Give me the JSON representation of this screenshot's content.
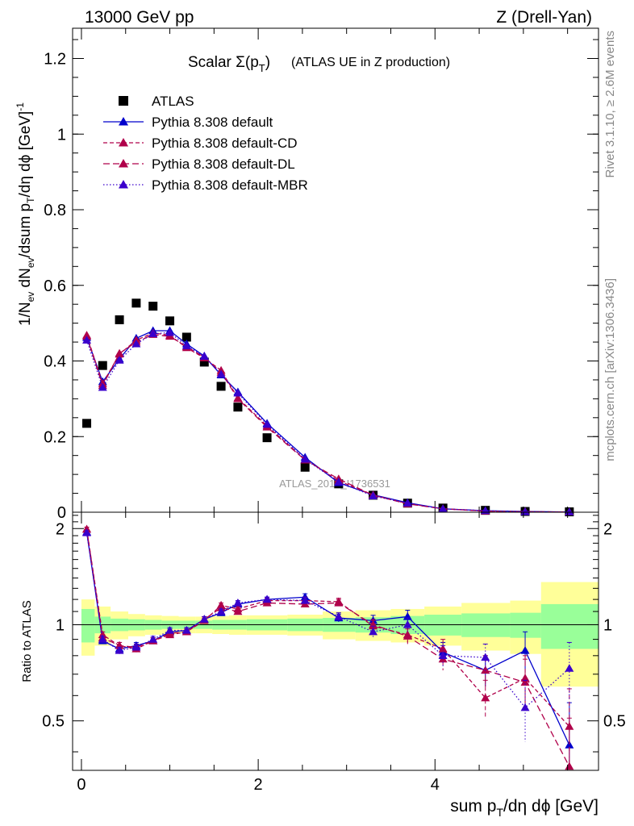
{
  "header": {
    "left": "13000 GeV pp",
    "right": "Z (Drell-Yan)"
  },
  "side_labels": {
    "rivet": "Rivet 3.1.10, ≥ 2.6M events",
    "mcplots": "mcplots.cern.ch [arXiv:1306.3436]"
  },
  "chart_data": [
    {
      "type": "scatter",
      "title_main": "Scalar Σ(p",
      "title_sub": "T",
      "title_close": ")",
      "title_extra": "(ATLAS UE in Z production)",
      "ylabel": "1/N_ev dN_ev/dsum p_T/dη dϕ [GeV]^-1",
      "watermark": "ATLAS_2019_I1736531",
      "xlim": [
        -0.1,
        5.85
      ],
      "ylim": [
        0,
        1.28
      ],
      "yticks": [
        0,
        0.2,
        0.4,
        0.6,
        0.8,
        1,
        1.2
      ],
      "ytick_labels": [
        "0",
        "0.2",
        "0.4",
        "0.6",
        "0.8",
        "1",
        "1.2"
      ],
      "x": [
        0.06,
        0.24,
        0.43,
        0.62,
        0.81,
        1.0,
        1.19,
        1.39,
        1.58,
        1.77,
        2.1,
        2.53,
        2.91,
        3.3,
        3.69,
        4.09,
        4.57,
        5.02,
        5.52
      ],
      "series": [
        {
          "name": "ATLAS",
          "color": "#000000",
          "marker": "square",
          "values": [
            0.235,
            0.388,
            0.509,
            0.553,
            0.545,
            0.506,
            0.463,
            0.397,
            0.333,
            0.278,
            0.197,
            0.119,
            0.075,
            0.045,
            0.024,
            0.011,
            0.005,
            0.002,
            0.001
          ]
        },
        {
          "name": "Pythia 8.308 default",
          "color": "#0000cc",
          "marker": "triangle",
          "dash": "none",
          "values": [
            0.462,
            0.345,
            0.405,
            0.46,
            0.48,
            0.48,
            0.445,
            0.413,
            0.363,
            0.318,
            0.235,
            0.145,
            0.078,
            0.046,
            0.025,
            0.009,
            0.004,
            0.002,
            0.0004
          ]
        },
        {
          "name": "Pythia 8.308 default-CD",
          "color": "#b0004a",
          "marker": "triangle",
          "dash": "5,3",
          "values": [
            0.468,
            0.34,
            0.418,
            0.455,
            0.474,
            0.468,
            0.435,
            0.408,
            0.375,
            0.302,
            0.228,
            0.14,
            0.083,
            0.045,
            0.023,
            0.009,
            0.003,
            0.0013,
            0.0005
          ]
        },
        {
          "name": "Pythia 8.308 default-DL",
          "color": "#b0004a",
          "marker": "triangle",
          "dash": "8,4",
          "values": [
            0.465,
            0.335,
            0.42,
            0.45,
            0.47,
            0.465,
            0.438,
            0.41,
            0.37,
            0.3,
            0.225,
            0.138,
            0.088,
            0.045,
            0.022,
            0.009,
            0.003,
            0.0014,
            0.0005
          ]
        },
        {
          "name": "Pythia 8.308 default-MBR",
          "color": "#3a00cc",
          "marker": "triangle",
          "dash": "1.5,2.5",
          "values": [
            0.455,
            0.33,
            0.402,
            0.445,
            0.472,
            0.475,
            0.44,
            0.412,
            0.365,
            0.315,
            0.232,
            0.14,
            0.08,
            0.043,
            0.024,
            0.009,
            0.004,
            0.001,
            0.0007
          ]
        }
      ]
    },
    {
      "type": "scatter",
      "ylabel": "Ratio to ATLAS",
      "xlabel_main": "sum p",
      "xlabel_sub": "T",
      "xlabel_rest": "/dη dϕ [GeV]",
      "xlim": [
        -0.1,
        5.85
      ],
      "ylim": [
        0.35,
        2.25
      ],
      "xticks": [
        0,
        2,
        4
      ],
      "xtick_labels": [
        "0",
        "2",
        "4"
      ],
      "yticks": [
        0.5,
        1,
        2
      ],
      "ytick_labels": [
        "0.5",
        "1",
        "2"
      ],
      "band_edges": [
        0.0,
        0.15,
        0.33,
        0.53,
        0.72,
        0.91,
        1.1,
        1.29,
        1.48,
        1.67,
        1.87,
        2.33,
        2.73,
        3.1,
        3.5,
        3.88,
        4.3,
        4.85,
        5.2,
        5.85
      ],
      "band_inner": [
        0.12,
        0.06,
        0.045,
        0.04,
        0.035,
        0.03,
        0.03,
        0.03,
        0.035,
        0.035,
        0.04,
        0.045,
        0.05,
        0.055,
        0.065,
        0.075,
        0.085,
        0.09,
        0.16
      ],
      "band_outer": [
        0.2,
        0.14,
        0.1,
        0.08,
        0.07,
        0.065,
        0.06,
        0.06,
        0.065,
        0.07,
        0.07,
        0.075,
        0.1,
        0.11,
        0.12,
        0.14,
        0.17,
        0.19,
        0.36
      ],
      "x": [
        0.06,
        0.24,
        0.43,
        0.62,
        0.81,
        1.0,
        1.19,
        1.39,
        1.58,
        1.77,
        2.1,
        2.53,
        2.91,
        3.3,
        3.69,
        4.09,
        4.57,
        5.02,
        5.52
      ],
      "series": [
        {
          "name": "Pythia 8.308 default",
          "color": "#0000cc",
          "dash": "none",
          "values": [
            1.95,
            0.89,
            0.84,
            0.86,
            0.89,
            0.95,
            0.96,
            1.04,
            1.09,
            1.16,
            1.2,
            1.22,
            1.05,
            1.03,
            1.06,
            0.82,
            0.72,
            0.83,
            0.42
          ],
          "errors": [
            0.03,
            0.02,
            0.02,
            0.02,
            0.02,
            0.02,
            0.02,
            0.02,
            0.02,
            0.02,
            0.02,
            0.03,
            0.03,
            0.04,
            0.05,
            0.06,
            0.08,
            0.12,
            0.15
          ]
        },
        {
          "name": "Pythia 8.308 default-CD",
          "color": "#b0004a",
          "dash": "5,3",
          "values": [
            1.99,
            0.93,
            0.86,
            0.84,
            0.89,
            0.93,
            0.95,
            1.03,
            1.15,
            1.12,
            1.19,
            1.19,
            1.18,
            0.99,
            0.93,
            0.84,
            0.59,
            0.68,
            0.48
          ],
          "errors": [
            0.03,
            0.02,
            0.02,
            0.02,
            0.02,
            0.02,
            0.02,
            0.02,
            0.02,
            0.02,
            0.02,
            0.03,
            0.03,
            0.04,
            0.05,
            0.06,
            0.08,
            0.12,
            0.15
          ]
        },
        {
          "name": "Pythia 8.308 default-DL",
          "color": "#b0004a",
          "dash": "8,4",
          "values": [
            1.99,
            0.91,
            0.86,
            0.85,
            0.89,
            0.94,
            0.95,
            1.04,
            1.13,
            1.1,
            1.17,
            1.16,
            1.17,
            1.0,
            0.92,
            0.78,
            0.72,
            0.66,
            0.36
          ],
          "errors": [
            0.03,
            0.02,
            0.02,
            0.02,
            0.02,
            0.02,
            0.02,
            0.02,
            0.02,
            0.02,
            0.02,
            0.03,
            0.03,
            0.04,
            0.05,
            0.06,
            0.08,
            0.12,
            0.15
          ]
        },
        {
          "name": "Pythia 8.308 default-MBR",
          "color": "#3a00cc",
          "dash": "1.5,2.5",
          "values": [
            1.94,
            0.9,
            0.83,
            0.85,
            0.9,
            0.96,
            0.96,
            1.04,
            1.1,
            1.17,
            1.2,
            1.19,
            1.06,
            0.95,
            1.0,
            0.8,
            0.79,
            0.55,
            0.73
          ],
          "errors": [
            0.03,
            0.02,
            0.02,
            0.02,
            0.02,
            0.02,
            0.02,
            0.02,
            0.02,
            0.02,
            0.02,
            0.03,
            0.03,
            0.04,
            0.05,
            0.06,
            0.08,
            0.12,
            0.15
          ]
        }
      ]
    }
  ]
}
